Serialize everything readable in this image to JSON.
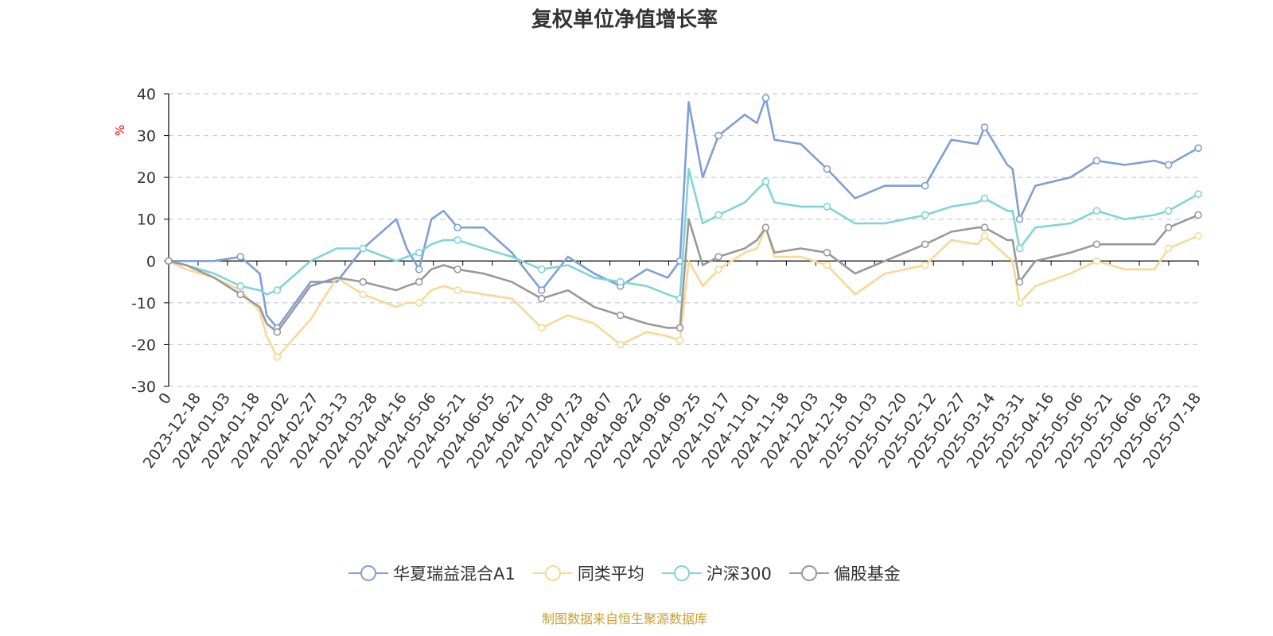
{
  "title": "复权单位净值增长率",
  "source_note": "制图数据来自恒生聚源数据库",
  "colors": {
    "series": [
      "#7f9fd5",
      "#fcd696",
      "#80d4d8",
      "#999999"
    ],
    "grid": "#cccccc",
    "axis": "#000000",
    "ylabel": "#ff0000"
  },
  "chart_data": {
    "type": "line",
    "title": "复权单位净值增长率",
    "ylabel": "%",
    "ylim": [
      -30,
      40
    ],
    "yticks": [
      -30,
      -20,
      -10,
      0,
      10,
      20,
      30,
      40
    ],
    "grid": "horizontal dashed",
    "legend_position": "bottom",
    "x_start_label": "0",
    "x_tick_labels": [
      "2023-12-18",
      "2024-01-03",
      "2024-01-18",
      "2024-02-02",
      "2024-02-27",
      "2024-03-13",
      "2024-03-28",
      "2024-04-16",
      "2024-05-06",
      "2024-05-21",
      "2024-06-05",
      "2024-06-21",
      "2024-07-08",
      "2024-07-23",
      "2024-08-07",
      "2024-08-22",
      "2024-09-06",
      "2024-09-25",
      "2024-10-17",
      "2024-11-01",
      "2024-11-18",
      "2024-12-03",
      "2024-12-18",
      "2025-01-03",
      "2025-01-20",
      "2025-02-12",
      "2025-02-27",
      "2025-03-14",
      "2025-03-31",
      "2025-04-16",
      "2025-05-06",
      "2025-05-21",
      "2025-06-06",
      "2025-06-23",
      "2025-07-18"
    ],
    "x": [
      "2023-12-08",
      "2023-12-18",
      "2024-01-03",
      "2024-01-18",
      "2024-01-29",
      "2024-02-02",
      "2024-02-08",
      "2024-02-27",
      "2024-03-13",
      "2024-03-28",
      "2024-04-16",
      "2024-04-22",
      "2024-04-29",
      "2024-05-06",
      "2024-05-13",
      "2024-05-21",
      "2024-06-05",
      "2024-06-21",
      "2024-07-08",
      "2024-07-23",
      "2024-08-07",
      "2024-08-22",
      "2024-09-06",
      "2024-09-18",
      "2024-09-25",
      "2024-09-30",
      "2024-10-08",
      "2024-10-17",
      "2024-11-01",
      "2024-11-08",
      "2024-11-13",
      "2024-11-18",
      "2024-12-03",
      "2024-12-18",
      "2025-01-03",
      "2025-01-20",
      "2025-02-12",
      "2025-02-27",
      "2025-03-14",
      "2025-03-18",
      "2025-03-31",
      "2025-04-03",
      "2025-04-07",
      "2025-04-16",
      "2025-05-06",
      "2025-05-21",
      "2025-06-06",
      "2025-06-23",
      "2025-07-01",
      "2025-07-18"
    ],
    "series": [
      {
        "name": "华夏瑞益混合A1",
        "values": [
          0,
          0,
          0,
          1,
          -3,
          -13,
          -16,
          -5,
          -5,
          3,
          10,
          3,
          -2,
          10,
          12,
          8,
          8,
          2,
          -7,
          1,
          -3,
          -6,
          -2,
          -4,
          0,
          38,
          20,
          30,
          35,
          33,
          39,
          29,
          28,
          22,
          15,
          18,
          18,
          29,
          28,
          32,
          23,
          22,
          10,
          18,
          20,
          24,
          23,
          24,
          23,
          27
        ]
      },
      {
        "name": "同类平均",
        "values": [
          0,
          -2,
          -4,
          -7,
          -12,
          -18,
          -23,
          -14,
          -4,
          -8,
          -11,
          -10,
          -10,
          -7,
          -6,
          -7,
          -8,
          -9,
          -16,
          -13,
          -15,
          -20,
          -17,
          -18,
          -19,
          0,
          -6,
          -2,
          2,
          3,
          8,
          1,
          1,
          -1,
          -8,
          -3,
          -1,
          5,
          4,
          6,
          1,
          0,
          -10,
          -6,
          -3,
          0,
          -2,
          -2,
          3,
          6
        ]
      },
      {
        "name": "沪深300",
        "values": [
          0,
          -1,
          -3,
          -6,
          -7,
          -8,
          -7,
          0,
          3,
          3,
          0,
          1,
          2,
          4,
          5,
          5,
          3,
          1,
          -2,
          -1,
          -4,
          -5,
          -6,
          -8,
          -9,
          22,
          9,
          11,
          14,
          17,
          19,
          14,
          13,
          13,
          9,
          9,
          11,
          13,
          14,
          15,
          12,
          12,
          3,
          8,
          9,
          12,
          10,
          11,
          12,
          16
        ]
      },
      {
        "name": "偏股基金",
        "values": [
          0,
          -1,
          -4,
          -8,
          -11,
          -15,
          -17,
          -6,
          -4,
          -5,
          -7,
          -6,
          -5,
          -2,
          -1,
          -2,
          -3,
          -5,
          -9,
          -7,
          -11,
          -13,
          -15,
          -16,
          -16,
          10,
          -1,
          1,
          3,
          5,
          8,
          2,
          3,
          2,
          -3,
          0,
          4,
          7,
          8,
          8,
          5,
          5,
          -5,
          0,
          2,
          4,
          4,
          4,
          8,
          11
        ]
      }
    ]
  }
}
